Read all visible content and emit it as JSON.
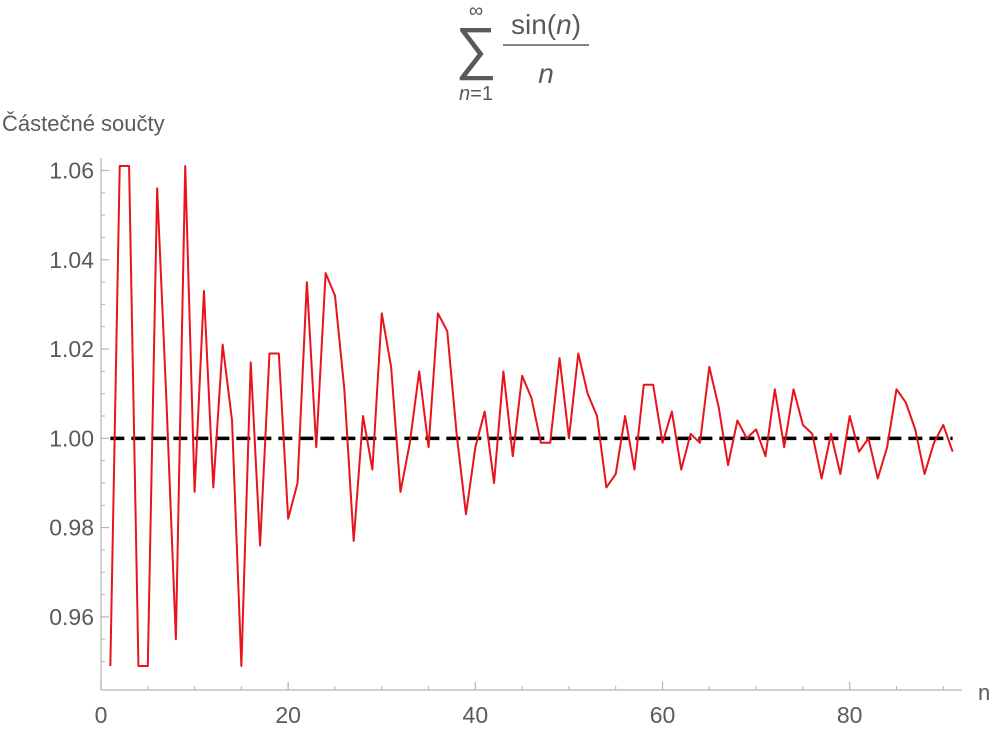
{
  "chart_data": {
    "type": "line",
    "title": {
      "lower_limit": "n=1",
      "upper_limit": "∞",
      "numerator_fn": "sin(",
      "numerator_var": "n",
      "numerator_close": ")",
      "denominator": "n"
    },
    "xlabel": "n",
    "ylabel": "Částečné součty",
    "xlim": [
      0,
      92
    ],
    "ylim": [
      0.949,
      1.061
    ],
    "xticks": [
      "0",
      "20",
      "40",
      "60",
      "80"
    ],
    "xtick_values": [
      0,
      20,
      40,
      60,
      80
    ],
    "yticks": [
      "0.96",
      "0.98",
      "1.00",
      "1.02",
      "1.04",
      "1.06"
    ],
    "ytick_values": [
      0.96,
      0.98,
      1.0,
      1.02,
      1.04,
      1.06
    ],
    "reference_line": {
      "value": 1.0,
      "style": "dashed",
      "color": "#000000"
    },
    "series": [
      {
        "color": "#e8141b",
        "x": [
          1,
          2,
          3,
          4,
          5,
          6,
          7,
          8,
          9,
          10,
          11,
          12,
          13,
          14,
          15,
          16,
          17,
          18,
          19,
          20,
          21,
          22,
          23,
          24,
          25,
          26,
          27,
          28,
          29,
          30,
          31,
          32,
          33,
          34,
          35,
          36,
          37,
          38,
          39,
          40,
          41,
          42,
          43,
          44,
          45,
          46,
          47,
          48,
          49,
          50,
          51,
          52,
          53,
          54,
          55,
          56,
          57,
          58,
          59,
          60,
          61,
          62,
          63,
          64,
          65,
          66,
          67,
          68,
          69,
          70,
          71,
          72,
          73,
          74,
          75,
          76,
          77,
          78,
          79,
          80,
          81,
          82,
          83,
          84,
          85,
          86,
          87,
          88,
          89,
          90,
          91
        ],
        "y": [
          0.949,
          1.061,
          1.061,
          0.949,
          0.949,
          1.056,
          1.008,
          0.955,
          1.061,
          0.988,
          1.033,
          0.989,
          1.021,
          1.004,
          0.949,
          1.017,
          0.976,
          1.019,
          1.019,
          0.982,
          0.99,
          1.035,
          0.998,
          1.037,
          1.032,
          1.011,
          0.977,
          1.005,
          0.993,
          1.028,
          1.016,
          0.988,
          0.999,
          1.015,
          0.998,
          1.028,
          1.024,
          1.001,
          0.983,
          0.998,
          1.006,
          0.99,
          1.015,
          0.996,
          1.014,
          1.009,
          0.999,
          0.999,
          1.018,
          1.0,
          1.019,
          1.01,
          1.005,
          0.989,
          0.992,
          1.005,
          0.993,
          1.012,
          1.012,
          0.999,
          1.006,
          0.993,
          1.001,
          0.999,
          1.016,
          1.007,
          0.994,
          1.004,
          1.0,
          1.002,
          0.996,
          1.011,
          0.998,
          1.011,
          1.003,
          1.001,
          0.991,
          1.001,
          0.992,
          1.005,
          0.997,
          1.0,
          0.991,
          0.998,
          1.011,
          1.008,
          1.002,
          0.992,
          0.999,
          1.003,
          0.997
        ]
      }
    ],
    "grid": false,
    "axis_color": "#b3b3b3"
  }
}
